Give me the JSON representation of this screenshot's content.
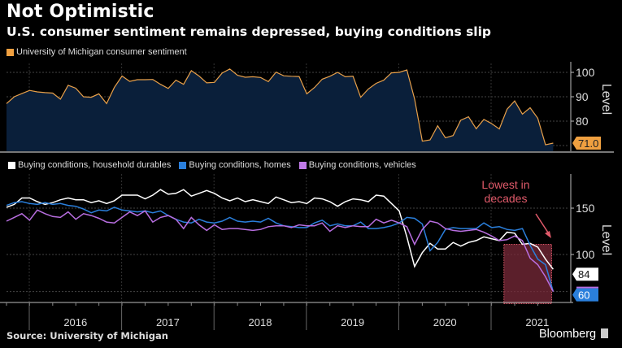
{
  "header": {
    "title": "Not Optimistic",
    "subtitle": "U.S. consumer sentiment remains depressed, buying conditions slip"
  },
  "footer": {
    "source": "Source: University of Michigan",
    "brand": "Bloomberg"
  },
  "colors": {
    "sentiment_line": "#e8a04a",
    "sentiment_fill": "#0a1f3a",
    "durables": "#ffffff",
    "homes": "#2a7fdc",
    "vehicles": "#b86ee0",
    "annotation": "#e05a6a",
    "highlight_box": "#7a2a3a"
  },
  "chart_data": [
    {
      "type": "area",
      "title": "University of Michigan consumer sentiment",
      "legend": [
        "University of Michigan consumer sentiment"
      ],
      "ylabel": "Level",
      "yticks": [
        80,
        90,
        100
      ],
      "ylim": [
        68,
        104
      ],
      "x_start": "2015-10",
      "frequency": "monthly",
      "series": [
        {
          "name": "University of Michigan consumer sentiment",
          "values": [
            87.2,
            90.0,
            91.3,
            92.6,
            92.0,
            91.7,
            91.5,
            89.0,
            94.7,
            93.5,
            90.0,
            89.8,
            91.2,
            87.2,
            93.8,
            98.5,
            96.3,
            97.0,
            97.0,
            97.1,
            95.1,
            93.4,
            96.8,
            95.1,
            100.7,
            98.5,
            95.7,
            95.9,
            99.7,
            101.4,
            98.8,
            98.0,
            98.2,
            97.9,
            96.2,
            100.1,
            98.6,
            98.4,
            98.3,
            91.2,
            93.8,
            97.2,
            98.4,
            100.0,
            98.2,
            98.4,
            89.8,
            93.2,
            95.5,
            96.8,
            99.8,
            100.0,
            101.0,
            89.1,
            71.8,
            72.3,
            78.1,
            73.2,
            74.1,
            80.4,
            81.8,
            76.9,
            80.7,
            79.0,
            76.8,
            84.9,
            88.3,
            82.9,
            85.5,
            81.2,
            70.3,
            71.0
          ],
          "last_label": "71.0"
        }
      ]
    },
    {
      "type": "line",
      "legend": [
        "Buying conditions, household durables",
        "Buying conditions, homes",
        "Buying conditions, vehicles"
      ],
      "ylabel": "Level",
      "yticks": [
        100,
        150
      ],
      "ylim": [
        49,
        188
      ],
      "x_start": "2015-10",
      "frequency": "monthly",
      "xtick_labels": [
        "2016",
        "2017",
        "2018",
        "2019",
        "2020",
        "2021"
      ],
      "series": [
        {
          "name": "Buying conditions, household durables",
          "values": [
            151,
            154,
            161,
            161,
            157,
            154,
            156,
            159,
            161,
            159,
            159,
            156,
            158,
            155,
            158,
            164,
            164,
            164,
            160,
            164,
            170,
            165,
            166,
            170,
            163,
            166,
            169,
            166,
            161,
            158,
            161,
            157,
            159,
            157,
            155,
            162,
            159,
            156,
            157,
            155,
            161,
            160,
            157,
            152,
            157,
            160,
            159,
            157,
            164,
            163,
            155,
            147,
            119,
            87,
            102,
            112,
            106,
            106,
            113,
            109,
            113,
            115,
            119,
            117,
            115,
            124,
            123,
            111,
            112,
            108,
            95,
            84
          ],
          "last_label": "84"
        },
        {
          "name": "Buying conditions, homes",
          "values": [
            153,
            156,
            157,
            155,
            154,
            156,
            154,
            155,
            153,
            152,
            149,
            145,
            148,
            147,
            151,
            148,
            147,
            146,
            147,
            145,
            147,
            142,
            138,
            135,
            134,
            138,
            135,
            134,
            136,
            140,
            136,
            135,
            136,
            135,
            139,
            134,
            131,
            130,
            129,
            129,
            134,
            137,
            131,
            133,
            131,
            131,
            135,
            128,
            128,
            129,
            131,
            134,
            140,
            139,
            133,
            104,
            113,
            127,
            129,
            128,
            128,
            128,
            134,
            129,
            130,
            127,
            126,
            128,
            110,
            95,
            89,
            60
          ],
          "last_label": "60"
        },
        {
          "name": "Buying conditions, vehicles",
          "values": [
            136,
            140,
            144,
            137,
            148,
            144,
            141,
            140,
            146,
            138,
            144,
            142,
            139,
            135,
            134,
            140,
            146,
            142,
            147,
            135,
            140,
            142,
            138,
            128,
            140,
            132,
            126,
            132,
            127,
            128,
            128,
            127,
            126,
            127,
            130,
            131,
            131,
            129,
            132,
            131,
            131,
            134,
            125,
            131,
            129,
            131,
            130,
            130,
            138,
            134,
            137,
            134,
            130,
            111,
            127,
            136,
            134,
            128,
            126,
            125,
            126,
            127,
            124,
            120,
            115,
            116,
            120,
            115,
            96,
            89,
            76,
            60
          ],
          "last_label": "60"
        }
      ],
      "annotations": [
        {
          "text_lines": [
            "Lowest in",
            "decades"
          ],
          "points_to": "shaded box",
          "box_range": "2021-02 to 2021-08"
        }
      ]
    }
  ]
}
